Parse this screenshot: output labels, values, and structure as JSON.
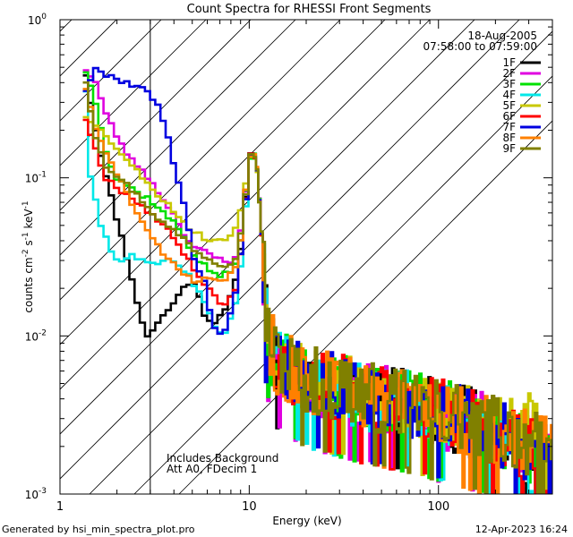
{
  "chart_data": {
    "type": "line",
    "title": "Count Spectra for RHESSI Front Segments",
    "xlabel": "Energy (keV)",
    "ylabel_base": "counts cm",
    "ylabel_sup1": "-2",
    "ylabel_mid1": " s",
    "ylabel_sup2": "-1",
    "ylabel_mid2": " keV",
    "ylabel_sup3": "-1",
    "xscale": "log",
    "yscale": "log",
    "xlim": [
      1,
      400
    ],
    "ylim": [
      0.001,
      1
    ],
    "x_ticks": [
      {
        "value": 1,
        "label": "1"
      },
      {
        "value": 10,
        "label": "10"
      },
      {
        "value": 100,
        "label": "100"
      }
    ],
    "y_ticks": [
      {
        "value": 1,
        "base": "10",
        "exp": "0"
      },
      {
        "value": 0.1,
        "base": "10",
        "exp": "-1"
      },
      {
        "value": 0.01,
        "base": "10",
        "exp": "-2"
      },
      {
        "value": 0.001,
        "base": "10",
        "exp": "-3"
      }
    ],
    "date": "18-Aug-2005",
    "time_range": "07:58:00 to 07:59:00",
    "hatch_xmax": 3,
    "annotations": [
      "Includes Background",
      "Att A0, FDecim 1"
    ],
    "legend_position": "top-right",
    "series": [
      {
        "name": "1F",
        "color": "#000000",
        "seed": 11,
        "low": [
          [
            1.3,
            0.5
          ],
          [
            1.5,
            0.2
          ],
          [
            1.7,
            0.1
          ],
          [
            1.9,
            0.06
          ],
          [
            2.1,
            0.038
          ],
          [
            2.3,
            0.025
          ],
          [
            2.5,
            0.015
          ],
          [
            2.8,
            0.01
          ],
          [
            3.0,
            0.011
          ],
          [
            3.5,
            0.014
          ],
          [
            4.0,
            0.017
          ],
          [
            4.5,
            0.022
          ],
          [
            5.0,
            0.021
          ],
          [
            5.6,
            0.014
          ],
          [
            6.2,
            0.012
          ],
          [
            7.0,
            0.014
          ],
          [
            8.0,
            0.02
          ],
          [
            8.5,
            0.025
          ],
          [
            9.0,
            0.05
          ]
        ],
        "end": 0.0014
      },
      {
        "name": "2F",
        "color": "#e000e0",
        "seed": 23,
        "low": [
          [
            1.3,
            0.5
          ],
          [
            1.5,
            0.4
          ],
          [
            1.7,
            0.25
          ],
          [
            2.0,
            0.17
          ],
          [
            2.3,
            0.13
          ],
          [
            2.7,
            0.11
          ],
          [
            3.0,
            0.09
          ],
          [
            3.5,
            0.07
          ],
          [
            4.0,
            0.055
          ],
          [
            4.5,
            0.042
          ],
          [
            5.0,
            0.036
          ],
          [
            5.6,
            0.034
          ],
          [
            6.2,
            0.032
          ],
          [
            7.0,
            0.03
          ],
          [
            8.0,
            0.03
          ],
          [
            8.5,
            0.035
          ],
          [
            9.0,
            0.06
          ]
        ],
        "end": 0.0022
      },
      {
        "name": "3F",
        "color": "#00e000",
        "seed": 37,
        "low": [
          [
            1.3,
            0.5
          ],
          [
            1.5,
            0.3
          ],
          [
            1.7,
            0.15
          ],
          [
            1.9,
            0.1
          ],
          [
            2.2,
            0.09
          ],
          [
            2.5,
            0.08
          ],
          [
            2.8,
            0.075
          ],
          [
            3.0,
            0.07
          ],
          [
            3.5,
            0.058
          ],
          [
            4.0,
            0.05
          ],
          [
            4.5,
            0.04
          ],
          [
            5.0,
            0.032
          ],
          [
            5.6,
            0.028
          ],
          [
            6.2,
            0.025
          ],
          [
            7.0,
            0.024
          ],
          [
            8.0,
            0.026
          ],
          [
            8.5,
            0.03
          ],
          [
            9.0,
            0.06
          ]
        ],
        "end": 0.002
      },
      {
        "name": "4F",
        "color": "#00e8e8",
        "seed": 41,
        "low": [
          [
            1.3,
            0.5
          ],
          [
            1.4,
            0.1
          ],
          [
            1.6,
            0.05
          ],
          [
            1.8,
            0.035
          ],
          [
            2.0,
            0.03
          ],
          [
            2.3,
            0.032
          ],
          [
            2.6,
            0.03
          ],
          [
            3.0,
            0.028
          ],
          [
            3.5,
            0.03
          ],
          [
            4.0,
            0.028
          ],
          [
            4.5,
            0.026
          ],
          [
            5.0,
            0.02
          ],
          [
            5.6,
            0.017
          ],
          [
            6.2,
            0.012
          ],
          [
            7.0,
            0.01
          ],
          [
            8.0,
            0.014
          ],
          [
            8.5,
            0.02
          ],
          [
            9.0,
            0.04
          ]
        ],
        "end": 0.0015
      },
      {
        "name": "5F",
        "color": "#c8c800",
        "seed": 53,
        "low": [
          [
            1.3,
            0.25
          ],
          [
            1.5,
            0.22
          ],
          [
            1.7,
            0.18
          ],
          [
            2.0,
            0.15
          ],
          [
            2.3,
            0.12
          ],
          [
            2.7,
            0.1
          ],
          [
            3.0,
            0.085
          ],
          [
            3.5,
            0.07
          ],
          [
            4.0,
            0.06
          ],
          [
            4.5,
            0.05
          ],
          [
            5.0,
            0.045
          ],
          [
            5.6,
            0.042
          ],
          [
            6.2,
            0.04
          ],
          [
            7.0,
            0.04
          ],
          [
            8.0,
            0.045
          ],
          [
            8.5,
            0.05
          ],
          [
            9.0,
            0.08
          ]
        ],
        "end": 0.0028
      },
      {
        "name": "6F",
        "color": "#ff0000",
        "seed": 67,
        "low": [
          [
            1.3,
            0.25
          ],
          [
            1.5,
            0.15
          ],
          [
            1.7,
            0.1
          ],
          [
            2.0,
            0.085
          ],
          [
            2.3,
            0.075
          ],
          [
            2.7,
            0.065
          ],
          [
            3.0,
            0.058
          ],
          [
            3.5,
            0.048
          ],
          [
            4.0,
            0.04
          ],
          [
            4.5,
            0.032
          ],
          [
            5.0,
            0.026
          ],
          [
            5.6,
            0.022
          ],
          [
            6.2,
            0.018
          ],
          [
            7.0,
            0.016
          ],
          [
            8.0,
            0.018
          ],
          [
            8.5,
            0.022
          ],
          [
            9.0,
            0.05
          ]
        ],
        "end": 0.002
      },
      {
        "name": "7F",
        "color": "#0000e0",
        "seed": 79,
        "low": [
          [
            1.3,
            0.35
          ],
          [
            1.5,
            0.48
          ],
          [
            1.8,
            0.44
          ],
          [
            2.2,
            0.4
          ],
          [
            2.7,
            0.36
          ],
          [
            3.2,
            0.3
          ],
          [
            3.6,
            0.18
          ],
          [
            4.0,
            0.1
          ],
          [
            4.5,
            0.06
          ],
          [
            5.0,
            0.03
          ],
          [
            5.6,
            0.022
          ],
          [
            6.2,
            0.012
          ],
          [
            7.0,
            0.01
          ],
          [
            8.0,
            0.016
          ],
          [
            8.5,
            0.022
          ],
          [
            9.0,
            0.05
          ]
        ],
        "end": 0.002
      },
      {
        "name": "8F",
        "color": "#ff8000",
        "seed": 83,
        "low": [
          [
            1.3,
            0.4
          ],
          [
            1.5,
            0.2
          ],
          [
            1.7,
            0.14
          ],
          [
            2.0,
            0.1
          ],
          [
            2.3,
            0.07
          ],
          [
            2.7,
            0.05
          ],
          [
            3.0,
            0.04
          ],
          [
            3.5,
            0.032
          ],
          [
            4.0,
            0.028
          ],
          [
            4.5,
            0.024
          ],
          [
            5.0,
            0.022
          ],
          [
            5.6,
            0.024
          ],
          [
            6.2,
            0.022
          ],
          [
            7.0,
            0.022
          ],
          [
            8.0,
            0.026
          ],
          [
            8.5,
            0.03
          ],
          [
            9.0,
            0.06
          ]
        ],
        "end": 0.0023
      },
      {
        "name": "9F",
        "color": "#808000",
        "seed": 97,
        "low": [
          [
            1.3,
            0.45
          ],
          [
            1.5,
            0.18
          ],
          [
            1.7,
            0.12
          ],
          [
            2.0,
            0.1
          ],
          [
            2.3,
            0.085
          ],
          [
            2.7,
            0.07
          ],
          [
            3.0,
            0.06
          ],
          [
            3.5,
            0.05
          ],
          [
            4.0,
            0.045
          ],
          [
            4.5,
            0.04
          ],
          [
            5.0,
            0.035
          ],
          [
            5.6,
            0.032
          ],
          [
            6.2,
            0.03
          ],
          [
            7.0,
            0.028
          ],
          [
            8.0,
            0.03
          ],
          [
            8.5,
            0.035
          ],
          [
            9.0,
            0.06
          ]
        ],
        "end": 0.0022
      }
    ]
  },
  "footer": {
    "generated": "Generated by  hsi_min_spectra_plot.pro",
    "timestamp": "12-Apr-2023 16:24"
  }
}
